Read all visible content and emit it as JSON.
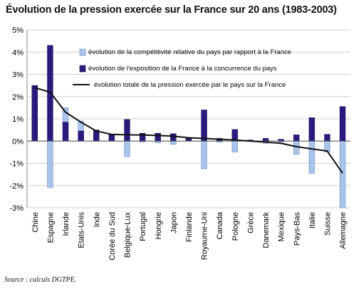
{
  "chart_data": {
    "type": "bar",
    "title": "Évolution de la pression exercée sur la France sur 20 ans (1983-2003)",
    "source": "Source : calculs DGTPE.",
    "categories": [
      "Chine",
      "Espagne",
      "Irlande",
      "Etats-Unis",
      "Inde",
      "Corée du Sud",
      "Belgique-Lux",
      "Portugal",
      "Hongrie",
      "Japon",
      "Finlande",
      "Royaume-Uni",
      "Canada",
      "Pologne",
      "Grèce",
      "Danemark",
      "Mexique",
      "Pays-Bas",
      "Italie",
      "Suisse",
      "Allemagne"
    ],
    "y_ticks": [
      "5%",
      "4%",
      "3%",
      "2%",
      "1%",
      "0%",
      "-1%",
      "-2%",
      "-3%"
    ],
    "ylim": [
      -3,
      5
    ],
    "grid": true,
    "legend_position": "top-right",
    "series": [
      {
        "name": "évolution de la compétitivité relative du pays par rapport à la France",
        "type": "bar",
        "color": "#a9c4ea",
        "values": [
          2.3,
          -2.1,
          1.5,
          0.9,
          0.3,
          0.1,
          -0.7,
          -0.05,
          -0.08,
          -0.15,
          0.02,
          -1.25,
          -0.05,
          -0.5,
          -0.02,
          -0.1,
          -0.05,
          -0.6,
          -1.45,
          -0.5,
          -3.0
        ]
      },
      {
        "name": "évolution de l'exposition de la France à la concurrence du pays",
        "type": "bar",
        "color": "#2b1a7e",
        "values": [
          2.5,
          4.3,
          0.85,
          0.45,
          0.5,
          0.3,
          0.97,
          0.35,
          0.35,
          0.33,
          0.12,
          1.4,
          0.12,
          0.52,
          0.05,
          0.12,
          0.08,
          0.28,
          1.05,
          0.3,
          1.55
        ]
      },
      {
        "name": "évolution totale de la pression exercée par le pays sur la France",
        "type": "line",
        "color": "#111111",
        "values": [
          2.4,
          2.2,
          1.3,
          0.85,
          0.45,
          0.3,
          0.28,
          0.27,
          0.25,
          0.22,
          0.15,
          0.12,
          0.08,
          0.05,
          0.0,
          -0.05,
          -0.1,
          -0.25,
          -0.35,
          -0.45,
          -1.45
        ]
      }
    ]
  }
}
